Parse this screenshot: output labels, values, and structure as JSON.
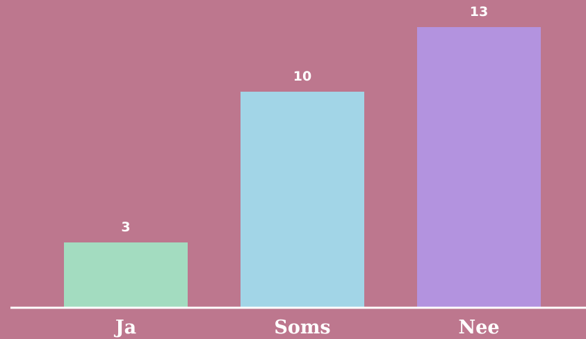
{
  "chart_data": {
    "type": "bar",
    "categories": [
      "Ja",
      "Soms",
      "Nee"
    ],
    "values": [
      3,
      10,
      13
    ],
    "value_labels": [
      "3",
      "10",
      "13"
    ],
    "bar_colors": [
      "#a3dcc0",
      "#a2d5e7",
      "#b393df"
    ],
    "background_color": "#bd778e",
    "axis_color": "#ffffff",
    "label_color": "#ffffff",
    "title": "",
    "xlabel": "",
    "ylabel": "",
    "ylim": [
      0,
      13
    ],
    "grid": false,
    "legend": "none"
  }
}
